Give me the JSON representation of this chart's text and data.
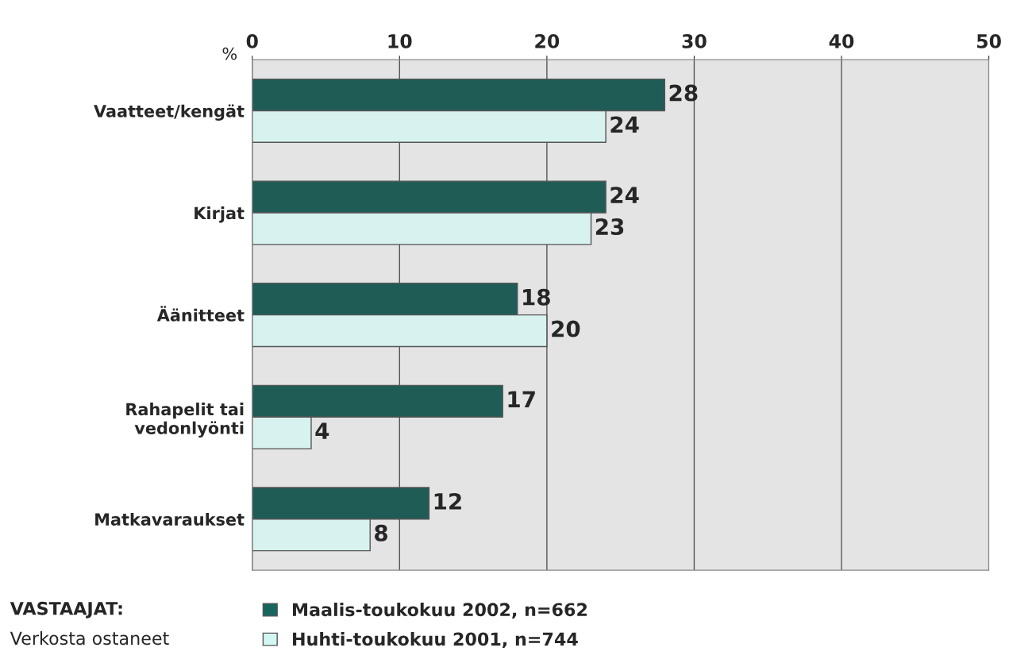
{
  "chart_data": {
    "type": "bar",
    "orientation": "horizontal",
    "xlabel": "%",
    "categories": [
      "Vaatteet/kengät",
      "Kirjat",
      "Äänitteet",
      "Rahapelit tai\nvedonlyönti",
      "Matkavaraukset"
    ],
    "series": [
      {
        "name": "Maalis-toukokuu 2002, n=662",
        "color": "#16665e",
        "values": [
          28,
          24,
          18,
          17,
          12
        ]
      },
      {
        "name": "Huhti-toukokuu 2001, n=744",
        "color": "#d2f7f2",
        "values": [
          24,
          23,
          20,
          4,
          8
        ]
      }
    ],
    "xlim": [
      0,
      50
    ],
    "xticks": [
      0,
      10,
      20,
      30,
      40,
      50
    ],
    "grid": "x",
    "data_labels": true,
    "legend": "bottom",
    "annotations": [
      "VASTAAJAT:",
      "Verkosta ostaneet"
    ]
  }
}
